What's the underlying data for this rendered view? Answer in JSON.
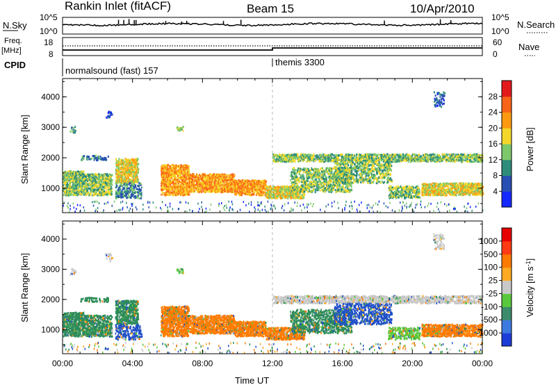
{
  "header": {
    "station": "Rankin Inlet (fitACF)",
    "beam": "Beam 15",
    "date": "10/Apr/2010"
  },
  "top_panels": {
    "nsky_label": "N.Sky",
    "nsky_ticks": [
      "10^5",
      "10^0"
    ],
    "nsearch_label": "N.Search",
    "nsearch_ticks": [
      "10^5",
      "10^0"
    ],
    "freq_label": "Freq.",
    "freq_unit": "[MHz]",
    "freq_ticks": [
      "18",
      "8"
    ],
    "nave_label": "Nave",
    "nave_ticks": [
      "60",
      "0"
    ],
    "cpid_label": "CPID",
    "cpid_entries": [
      {
        "name": "normalsound (fast) 157"
      },
      {
        "name": "themis 3300"
      }
    ]
  },
  "chart_data": [
    {
      "type": "heatmap",
      "title": "",
      "ylabel": "Slant Range [km]",
      "xlabel": "",
      "x_ticks": [
        "00:00",
        "04:00",
        "08:00",
        "12:00",
        "16:00",
        "20:00",
        "00:00"
      ],
      "y_ticks": [
        "1000",
        "2000",
        "3000",
        "4000"
      ],
      "ylim": [
        200,
        4600
      ],
      "colorbar": {
        "label": "Power [dB]",
        "ticks": [
          "4",
          "8",
          "12",
          "16",
          "20",
          "24",
          "28"
        ],
        "colors": [
          "#1428ff",
          "#2850b4",
          "#2d8c7a",
          "#7cc86a",
          "#f5d72a",
          "#ff9a10",
          "#f86418",
          "#e31a1c"
        ]
      }
    },
    {
      "type": "heatmap",
      "title": "",
      "ylabel": "Slant Range [km]",
      "xlabel": "Time UT",
      "x_ticks": [
        "00:00",
        "04:00",
        "08:00",
        "12:00",
        "16:00",
        "20:00",
        "00:00"
      ],
      "y_ticks": [
        "1000",
        "2000",
        "3000",
        "4000"
      ],
      "ylim": [
        200,
        4600
      ],
      "colorbar": {
        "label": "Velocity [m s",
        "label_sup": "-1",
        "label_end": "]",
        "ticks": [
          "1000",
          "500",
          "100",
          "25",
          "-25",
          "-100",
          "-500",
          "-1000"
        ],
        "colors": [
          "#1c3cd8",
          "#3c7ae0",
          "#3c8c6c",
          "#5ac83c",
          "#c8c8c8",
          "#ffaa22",
          "#ff7a00",
          "#ff3a14",
          "#e60000"
        ]
      }
    }
  ],
  "palette": {
    "power": [
      "#1428ff",
      "#2850b4",
      "#2d8c7a",
      "#7cc86a",
      "#f5d72a",
      "#ff9a10",
      "#f86418",
      "#e31a1c"
    ],
    "velocity_main": [
      "#ff7a00",
      "#2d8c5a",
      "#2050c8",
      "#c8c8c8",
      "#ffaa22",
      "#5ac83c"
    ]
  }
}
